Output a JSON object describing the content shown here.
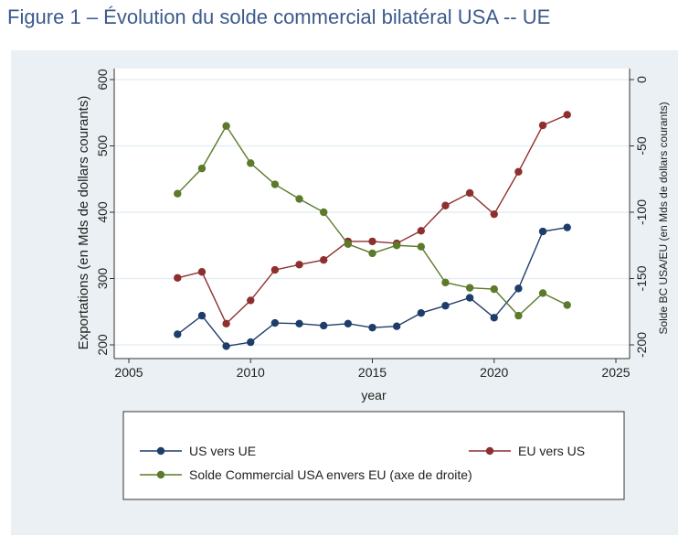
{
  "title": "Figure 1 – Évolution du solde commercial bilatéral USA -- UE",
  "chart_data": {
    "type": "line",
    "xlabel": "year",
    "ylabel": "Exportations (en Mds de dollars courants)",
    "ylabel_right": "Solde BC USA/EU (en Mds de dollars courants)",
    "xlim": [
      2005,
      2025
    ],
    "ylim": [
      200,
      600
    ],
    "ylim_right": [
      -200,
      0
    ],
    "xticks": [
      2005,
      2010,
      2015,
      2020,
      2025
    ],
    "yticks": [
      200,
      300,
      400,
      500,
      600
    ],
    "yticks_right": [
      -200,
      -150,
      -100,
      -50,
      0
    ],
    "grid": true,
    "legend_placement": "bottom",
    "x": [
      2007,
      2008,
      2009,
      2010,
      2011,
      2012,
      2013,
      2014,
      2015,
      2016,
      2017,
      2018,
      2019,
      2020,
      2021,
      2022,
      2023
    ],
    "series": [
      {
        "name": "US vers UE",
        "axis": "left",
        "color": "#1f3d6b",
        "values": [
          216,
          244,
          198,
          204,
          233,
          232,
          229,
          232,
          226,
          228,
          248,
          259,
          271,
          241,
          285,
          371,
          377
        ]
      },
      {
        "name": "EU vers US",
        "axis": "left",
        "color": "#8e2f2f",
        "values": [
          301,
          310,
          232,
          267,
          313,
          321,
          328,
          356,
          356,
          353,
          372,
          410,
          429,
          397,
          461,
          531,
          547
        ]
      },
      {
        "name": "Solde Commercial USA envers EU (axe de droite)",
        "axis": "right",
        "color": "#5b7a2b",
        "values": [
          -86,
          -67,
          -35,
          -63,
          -79,
          -90,
          -100,
          -124,
          -131,
          -125,
          -126,
          -153,
          -157,
          -158,
          -178,
          -161,
          -170
        ]
      }
    ]
  }
}
